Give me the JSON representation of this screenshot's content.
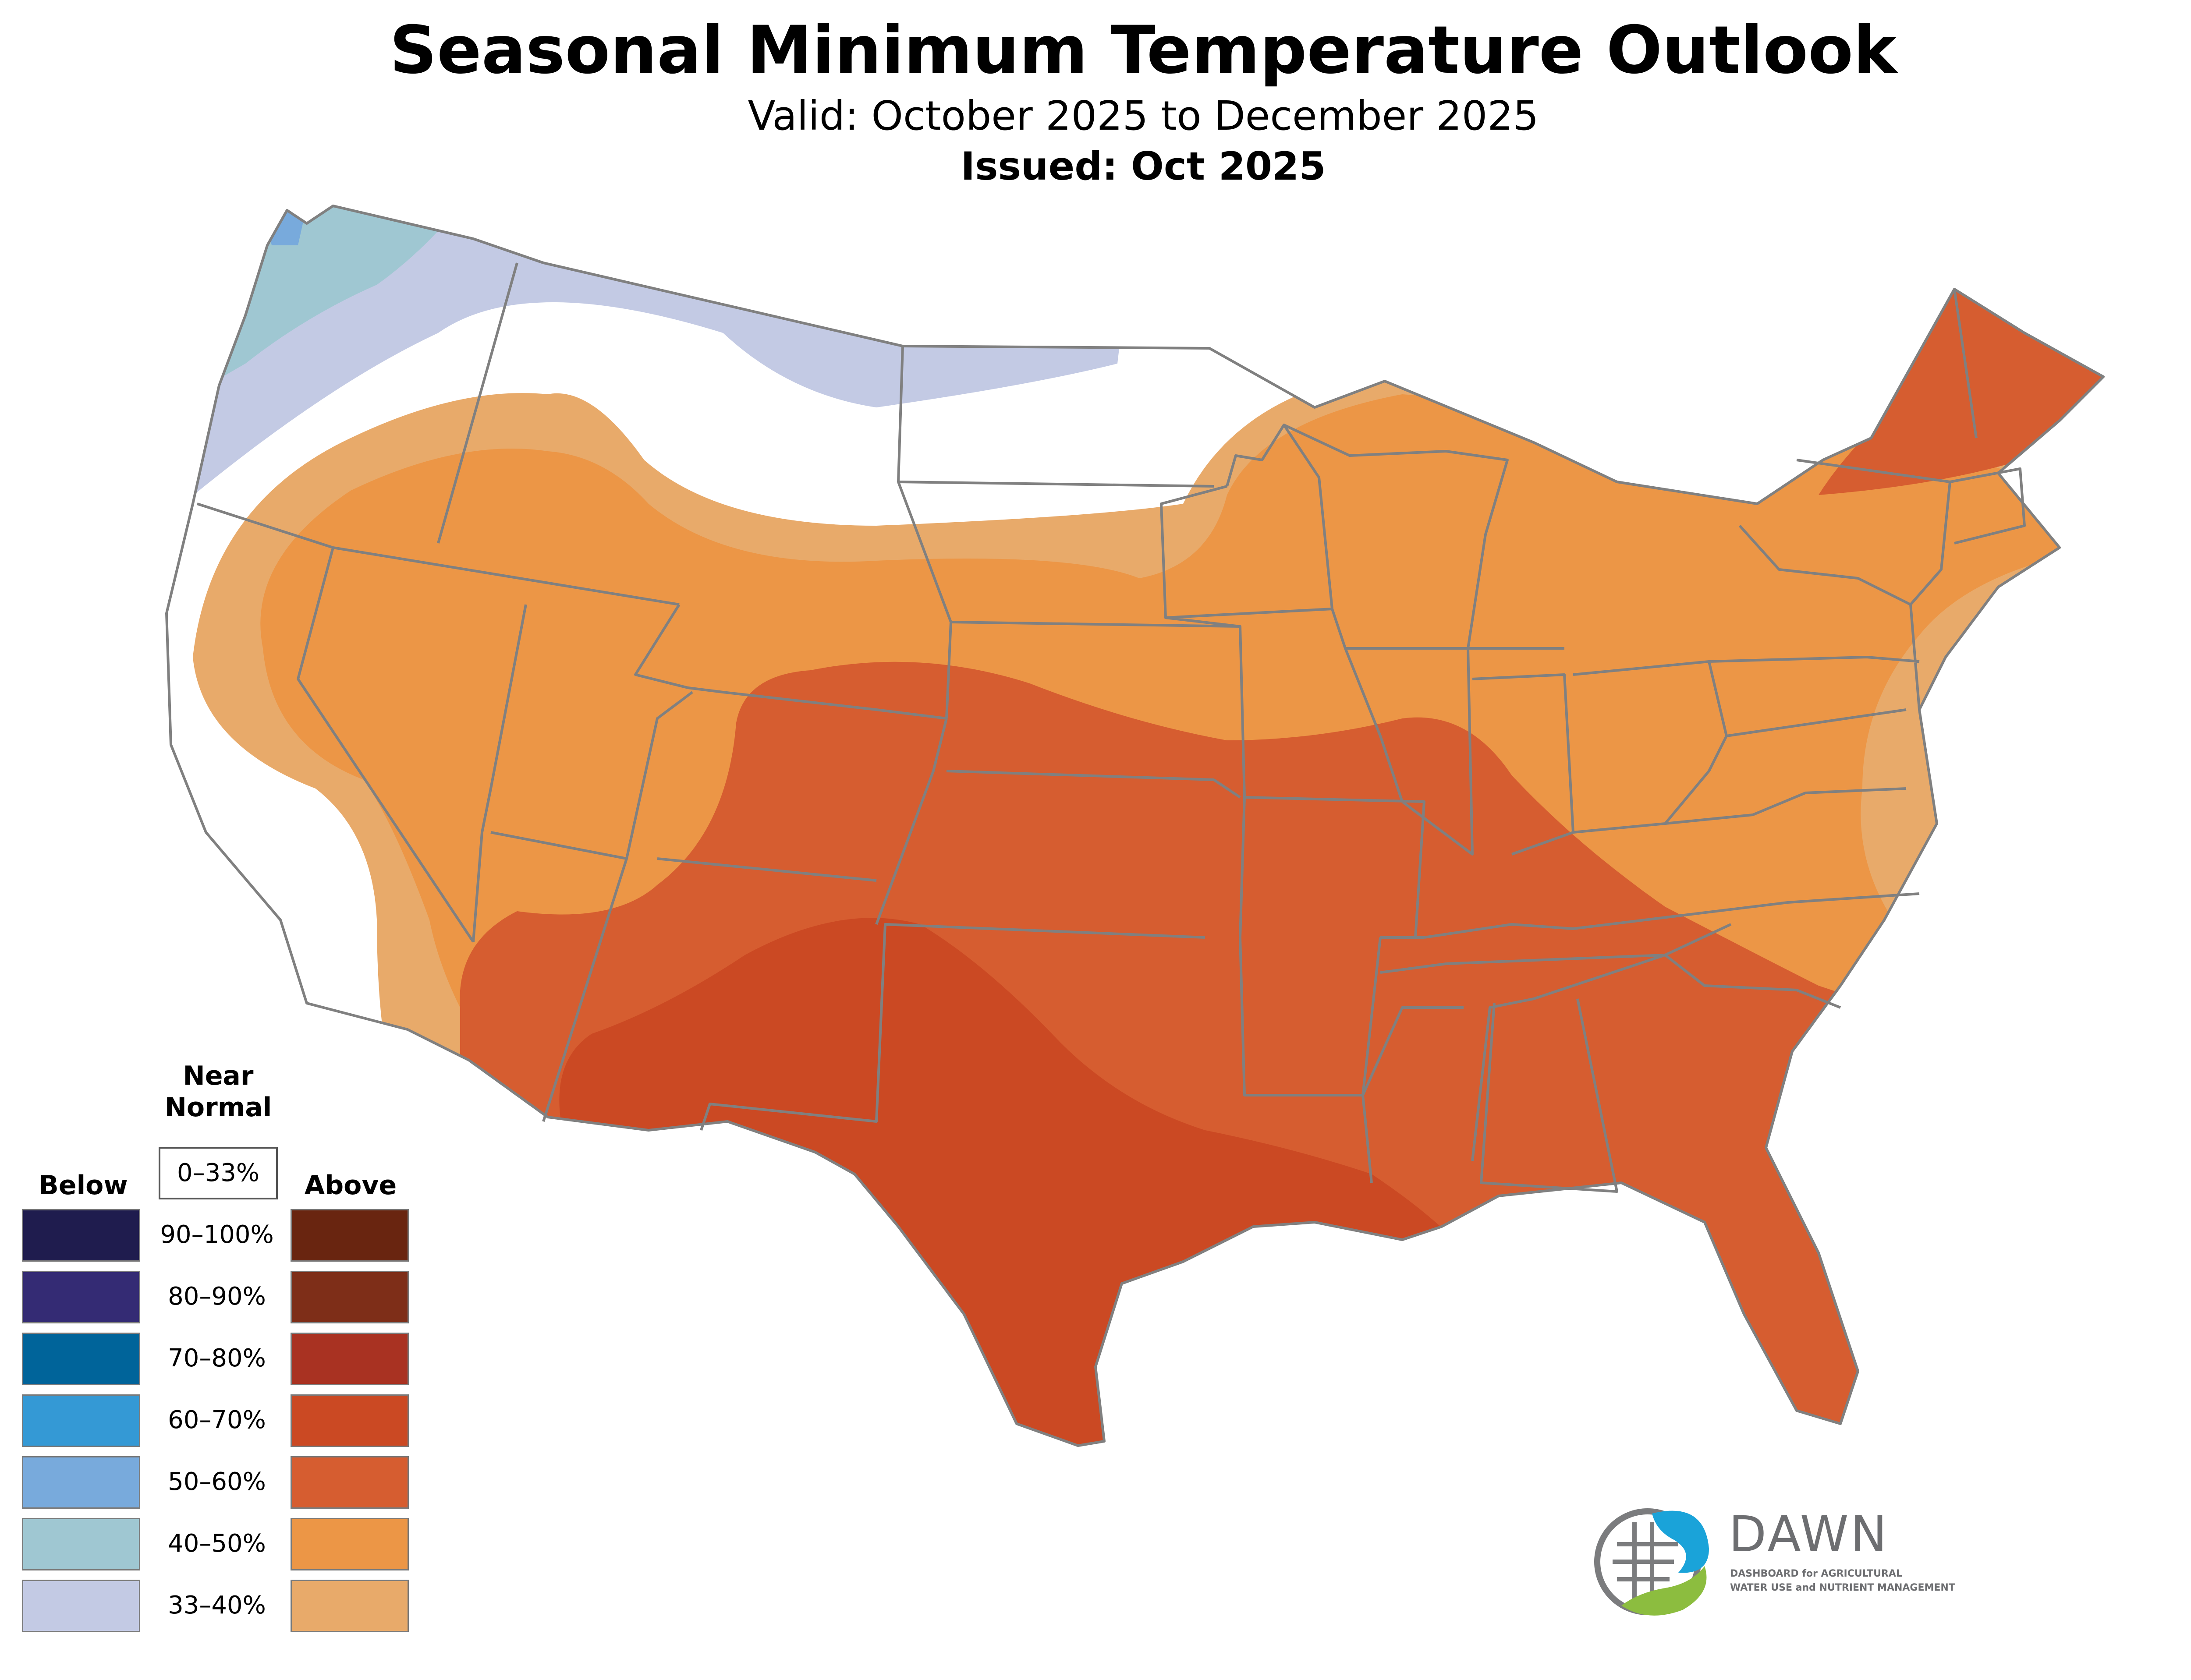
{
  "title": "Seasonal Minimum Temperature Outlook",
  "valid": "Valid: October 2025 to December 2025",
  "issued": "Issued: Oct 2025",
  "legend": {
    "below_label": "Below",
    "near_label": "Near\nNormal",
    "above_label": "Above",
    "near_range": "0–33%",
    "ranges": [
      "90–100%",
      "80–90%",
      "70–80%",
      "60–70%",
      "50–60%",
      "40–50%",
      "33–40%"
    ],
    "below_colors": [
      "#1f1c4e",
      "#342b74",
      "#00649a",
      "#3499d5",
      "#78aadc",
      "#9fc7d2",
      "#c3cae4"
    ],
    "above_colors": [
      "#692510",
      "#7e2e18",
      "#a93222",
      "#cb4923",
      "#d65d30",
      "#ec9646",
      "#e8aa6a"
    ]
  },
  "map_classes": [
    {
      "category": "Below",
      "range": "33–40%",
      "color": "#c3cae4"
    },
    {
      "category": "Below",
      "range": "40–50%",
      "color": "#9fc7d2"
    },
    {
      "category": "Below",
      "range": "50–60%",
      "color": "#78aadc"
    },
    {
      "category": "Above",
      "range": "33–40%",
      "color": "#e8aa6a"
    },
    {
      "category": "Above",
      "range": "40–50%",
      "color": "#ec9646"
    },
    {
      "category": "Above",
      "range": "50–60%",
      "color": "#d65d30"
    },
    {
      "category": "Above",
      "range": "60–70%",
      "color": "#cb4923"
    }
  ],
  "logo": {
    "name": "DAWN",
    "tagline": "DASHBOARD for AGRICULTURAL",
    "tagline2": "WATER USE and NUTRIENT MANAGEMENT"
  }
}
